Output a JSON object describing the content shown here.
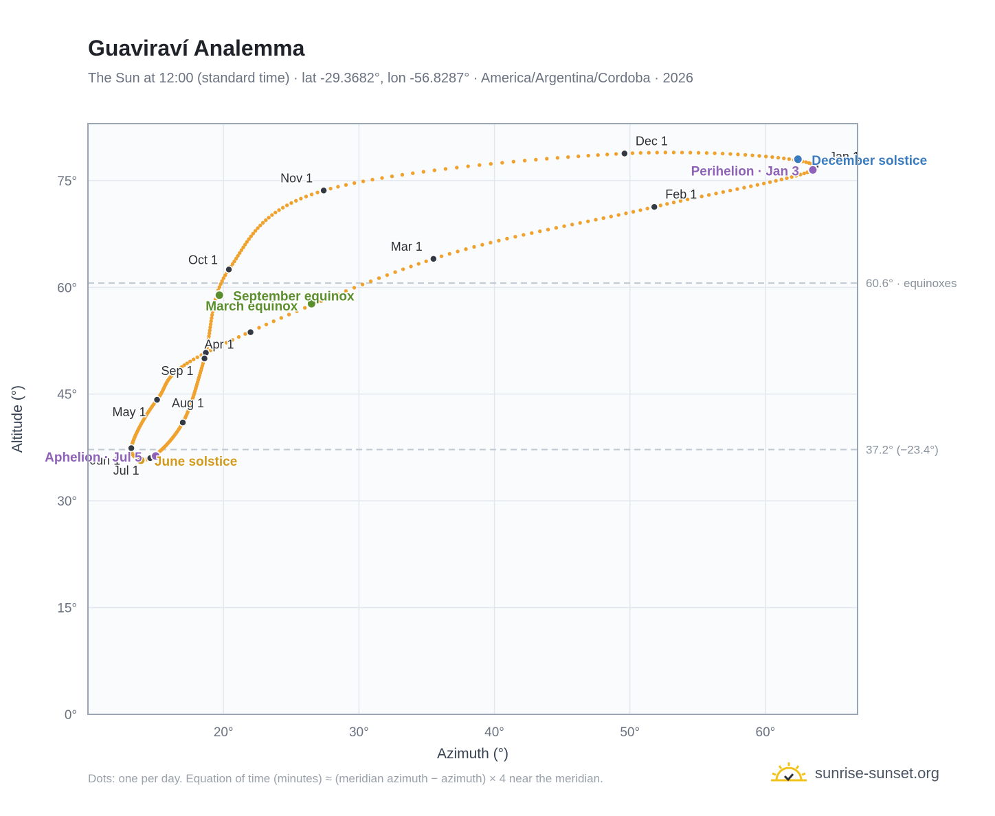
{
  "header": {
    "title": "Guaviraví Analemma",
    "subtitle": "The Sun at 12:00 (standard time) · lat -29.3682°, lon -56.8287° · America/Argentina/Cordoba · 2026"
  },
  "footer": {
    "note": "Dots: one per day. Equation of time (minutes) ≈ (meridian azimuth − azimuth) × 4 near the meridian.",
    "brand": "sunrise-sunset.org"
  },
  "colors": {
    "curve": "#f0a22e",
    "month_marker": "#343a44",
    "equinox": "#5b8f2e",
    "june_solstice": "#d29a1e",
    "december_solstice": "#3a7bbf",
    "apsis": "#8e62b8",
    "plot_background": "#f9fbfd",
    "grid": "#e3e8ee",
    "reference_line": "#c0c9d2"
  },
  "chart_data": {
    "type": "scatter",
    "xlabel": "Azimuth (°)",
    "ylabel": "Altitude (°)",
    "xlim": [
      10,
      66.8
    ],
    "ylim": [
      0,
      83
    ],
    "x_ticks": [
      20,
      30,
      40,
      50,
      60
    ],
    "x_tick_labels": [
      "20°",
      "30°",
      "40°",
      "50°",
      "60°"
    ],
    "y_ticks": [
      0,
      15,
      30,
      45,
      60,
      75
    ],
    "y_tick_labels": [
      "0°",
      "15°",
      "30°",
      "45°",
      "60°",
      "75°"
    ],
    "grid": true,
    "reference_lines": [
      {
        "y": 60.6,
        "label": "60.6° · equinoxes"
      },
      {
        "y": 37.2,
        "label": "37.2° (−23.4°)"
      }
    ],
    "dots_per_day": true,
    "monthly_points": [
      {
        "label": "Jan 1",
        "az": 63.7,
        "alt": 77.0
      },
      {
        "label": "Feb 1",
        "az": 51.8,
        "alt": 71.3
      },
      {
        "label": "Mar 1",
        "az": 35.5,
        "alt": 64.0
      },
      {
        "label": "Apr 1",
        "az": 18.7,
        "alt": 50.8
      },
      {
        "label": "May 1",
        "az": 15.1,
        "alt": 44.2
      },
      {
        "label": "Jun 1",
        "az": 13.2,
        "alt": 37.4
      },
      {
        "label": "Jul 1",
        "az": 14.6,
        "alt": 36.0
      },
      {
        "label": "Aug 1",
        "az": 17.0,
        "alt": 41.0
      },
      {
        "label": "Sep 1",
        "az": 18.6,
        "alt": 50.0
      },
      {
        "label": "Oct 1",
        "az": 20.4,
        "alt": 62.5
      },
      {
        "label": "Nov 1",
        "az": 27.4,
        "alt": 73.6
      },
      {
        "label": "Dec 1",
        "az": 49.6,
        "alt": 78.8
      }
    ],
    "unlabeled_points": [
      {
        "az": 22.0,
        "alt": 53.7
      }
    ],
    "events": [
      {
        "label": "March equinox",
        "az": 26.5,
        "alt": 57.7,
        "kind": "equinox"
      },
      {
        "label": "September equinox",
        "az": 19.7,
        "alt": 58.9,
        "kind": "equinox"
      },
      {
        "label": "June solstice",
        "az": 13.9,
        "alt": 35.7,
        "kind": "june_solstice"
      },
      {
        "label": "December solstice",
        "az": 62.4,
        "alt": 78.0,
        "kind": "december_solstice"
      },
      {
        "label": "Aphelion · Jul 5",
        "az": 15.0,
        "alt": 36.3,
        "kind": "apsis"
      },
      {
        "label": "Perihelion · Jan 3",
        "az": 63.5,
        "alt": 76.5,
        "kind": "apsis"
      }
    ]
  }
}
